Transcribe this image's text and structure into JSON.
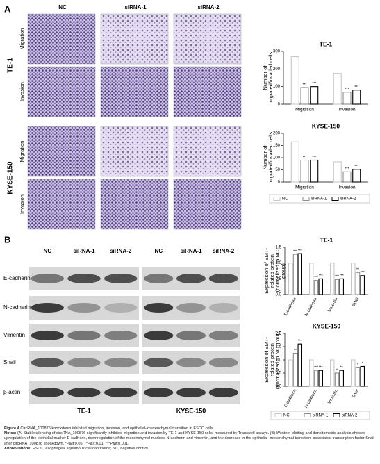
{
  "panel_a": {
    "label": "A",
    "columns": [
      "NC",
      "siRNA-1",
      "siRNA-2"
    ],
    "rows": [
      "Migration",
      "Invasion",
      "Migration",
      "Invasion"
    ],
    "cell_lines": [
      "TE-1",
      "KYSE-150"
    ]
  },
  "panel_b": {
    "label": "B",
    "columns": [
      "NC",
      "siRNA-1",
      "siRNA-2"
    ],
    "proteins": [
      "E-cadherin",
      "N-cadherin",
      "Vimentin",
      "Snail",
      "β-actin"
    ],
    "cell_lines": [
      "TE-1",
      "KYSE-150"
    ]
  },
  "chart_data": [
    {
      "type": "bar",
      "title": "TE-1",
      "y_label": "Number of migrated/invaded cells",
      "categories": [
        "Migration",
        "Invasion"
      ],
      "series": [
        {
          "name": "NC",
          "color": "#c8c8c8",
          "values": [
            270,
            175
          ]
        },
        {
          "name": "siRNA-1",
          "color": "#8c8c8c",
          "values": [
            95,
            68
          ],
          "significance": [
            "***",
            "***"
          ]
        },
        {
          "name": "siRNA-2",
          "color": "#000000",
          "values": [
            100,
            80
          ],
          "significance": [
            "***",
            "***"
          ]
        }
      ],
      "ylim": [
        0,
        300
      ],
      "yticks": [
        0,
        100,
        200,
        300
      ],
      "legend": false
    },
    {
      "type": "bar",
      "title": "KYSE-150",
      "y_label": "Number of migrated/invaded cells",
      "categories": [
        "Migration",
        "Invasion"
      ],
      "series": [
        {
          "name": "NC",
          "color": "#c8c8c8",
          "values": [
            165,
            83
          ]
        },
        {
          "name": "siRNA-1",
          "color": "#8c8c8c",
          "values": [
            90,
            42
          ],
          "significance": [
            "***",
            "***"
          ]
        },
        {
          "name": "siRNA-2",
          "color": "#000000",
          "values": [
            90,
            52
          ],
          "significance": [
            "***",
            "***"
          ]
        }
      ],
      "ylim": [
        0,
        200
      ],
      "yticks": [
        0,
        50,
        100,
        150,
        200
      ],
      "legend": "bottom"
    },
    {
      "type": "bar",
      "title": "TE-1",
      "y_label": "Expression of EMT-related protein (normalized to NC group)",
      "categories": [
        "E-cadherin",
        "N-cadherin",
        "Vimentin",
        "Snail"
      ],
      "series": [
        {
          "name": "NC",
          "color": "#c8c8c8",
          "values": [
            1,
            1,
            1,
            1
          ]
        },
        {
          "name": "siRNA-1",
          "color": "#8c8c8c",
          "values": [
            1.28,
            0.45,
            0.48,
            0.7
          ],
          "significance": [
            "***",
            "***",
            "***",
            "**"
          ]
        },
        {
          "name": "siRNA-2",
          "color": "#000000",
          "values": [
            1.3,
            0.5,
            0.5,
            0.6
          ],
          "significance": [
            "***",
            "***",
            "***",
            "***"
          ]
        }
      ],
      "ylim": [
        0,
        1.5
      ],
      "yticks": [
        {
          "value": 0,
          "label": "0.0"
        },
        {
          "value": 0.5,
          "label": "0.5"
        },
        {
          "value": 1,
          "label": "1.0"
        },
        {
          "value": 1.5,
          "label": "1.5"
        }
      ],
      "legend": false
    },
    {
      "type": "bar",
      "title": "KYSE-150",
      "y_label": "Expression of EMT-related protein (normalized to NC group)",
      "categories": [
        "E-cadherin",
        "N-cadherin",
        "Vimentin",
        "Snail"
      ],
      "series": [
        {
          "name": "NC",
          "color": "#c8c8c8",
          "values": [
            1,
            1,
            1,
            1
          ]
        },
        {
          "name": "siRNA-1",
          "color": "#8c8c8c",
          "values": [
            1.25,
            0.6,
            0.5,
            0.7
          ],
          "significance": [
            "**",
            "***",
            "*",
            "*"
          ]
        },
        {
          "name": "siRNA-2",
          "color": "#000000",
          "values": [
            1.6,
            0.6,
            0.6,
            0.75
          ],
          "significance": [
            "***",
            "***",
            "**",
            "*"
          ]
        }
      ],
      "ylim": [
        0,
        2
      ],
      "yticks": [
        {
          "value": 0,
          "label": "0.0"
        },
        {
          "value": 0.5,
          "label": "0.5"
        },
        {
          "value": 1,
          "label": "1.0"
        },
        {
          "value": 1.5,
          "label": "1.5"
        },
        {
          "value": 2,
          "label": "2.0"
        }
      ],
      "legend": "bottom"
    }
  ],
  "caption": {
    "figure_label": "Figure 4",
    "title": "CircRNA_100876 knockdown inhibited migration, invasion, and epithelial–mesenchymal transition in ESCC cells.",
    "notes_label": "Notes:",
    "notes": "(A) Stable silencing of circRNA_100876 significantly inhibited migration and invasion by TE-1 and KYSE-150 cells, measured by Transwell assays. (B) Western blotting and densitometric analysis showed upregulation of the epithelial marker E-cadherin, downregulation of the mesenchymal markers N-cadherin and vimentin, and the decrease in the epithelial–mesenchymal transition–associated transcription factor Snail after circRNA_100876 knockdown. *P&lt;0.05, **P&lt;0.01, ***P&lt;0.001.",
    "abbreviations_label": "Abbreviations:",
    "abbreviations": "ESCC, esophageal squamous cell carcinoma; NC, negative control."
  }
}
